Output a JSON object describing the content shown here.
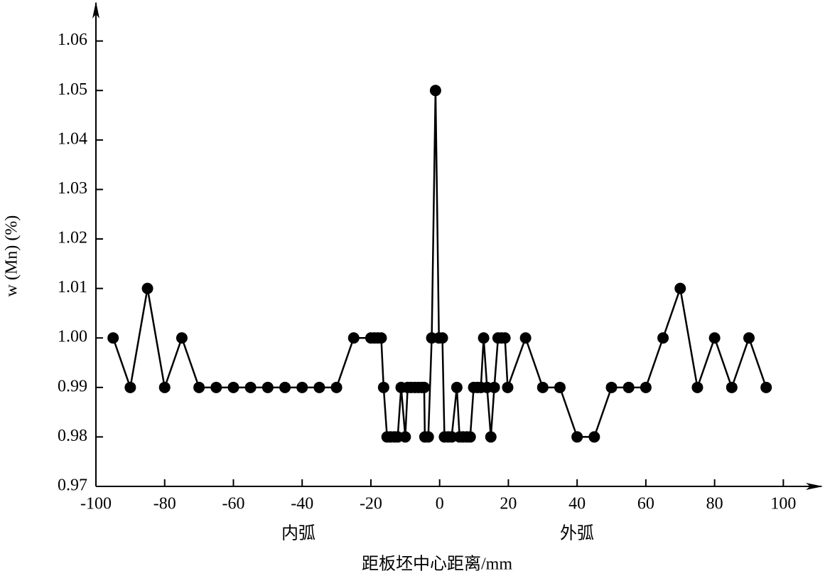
{
  "chart_data": {
    "type": "line",
    "ylabel": "w (Mn) (%)",
    "xlabel": "距板坯中心距离/mm",
    "annotations": [
      "内弧",
      "外弧"
    ],
    "color": "#000000",
    "x": [
      -95,
      -90,
      -85,
      -80,
      -75,
      -70,
      -65,
      -60,
      -55,
      -50,
      -45,
      -40,
      -35,
      -30,
      -25,
      -20,
      -19,
      -18,
      -17,
      -16.3,
      -15.3,
      -14.3,
      -13.2,
      -12.2,
      -11.2,
      -10,
      -9.3,
      -8.3,
      -7.2,
      -6.2,
      -5.2,
      -4.5,
      -4.3,
      -3.3,
      -2.3,
      -1.2,
      -0.2,
      0.8,
      1.4,
      2.5,
      3.5,
      5,
      5.8,
      6.8,
      7.9,
      8.9,
      9.9,
      11,
      12,
      12.8,
      13.8,
      14.9,
      15.9,
      17,
      18,
      19,
      19.8,
      25,
      30,
      35,
      40,
      45,
      50,
      55,
      60,
      65,
      70,
      75,
      80,
      85,
      90,
      95
    ],
    "values": [
      1.0,
      0.99,
      1.01,
      0.99,
      1.0,
      0.99,
      0.99,
      0.99,
      0.99,
      0.99,
      0.99,
      0.99,
      0.99,
      0.99,
      1.0,
      1.0,
      1.0,
      1.0,
      1.0,
      0.99,
      0.98,
      0.98,
      0.98,
      0.98,
      0.99,
      0.98,
      0.99,
      0.99,
      0.99,
      0.99,
      0.99,
      0.99,
      0.98,
      0.98,
      1.0,
      1.05,
      1.0,
      1.0,
      0.98,
      0.98,
      0.98,
      0.99,
      0.98,
      0.98,
      0.98,
      0.98,
      0.99,
      0.99,
      0.99,
      1.0,
      0.99,
      0.98,
      0.99,
      1.0,
      1.0,
      1.0,
      0.99,
      1.0,
      0.99,
      0.99,
      0.98,
      0.98,
      0.99,
      0.99,
      0.99,
      1.0,
      1.01,
      0.99,
      1.0,
      0.99,
      1.0,
      0.99
    ],
    "xlim": [
      -100,
      111.5
    ],
    "ylim": [
      0.97,
      1.068
    ],
    "xticks": [
      -100,
      -80,
      -60,
      -40,
      -20,
      0,
      20,
      40,
      60,
      80,
      100
    ],
    "yticks": [
      0.97,
      0.98,
      0.99,
      {
        "value": 1,
        "label": "1.00"
      },
      1.01,
      1.02,
      1.03,
      1.04,
      1.05,
      1.06
    ]
  }
}
